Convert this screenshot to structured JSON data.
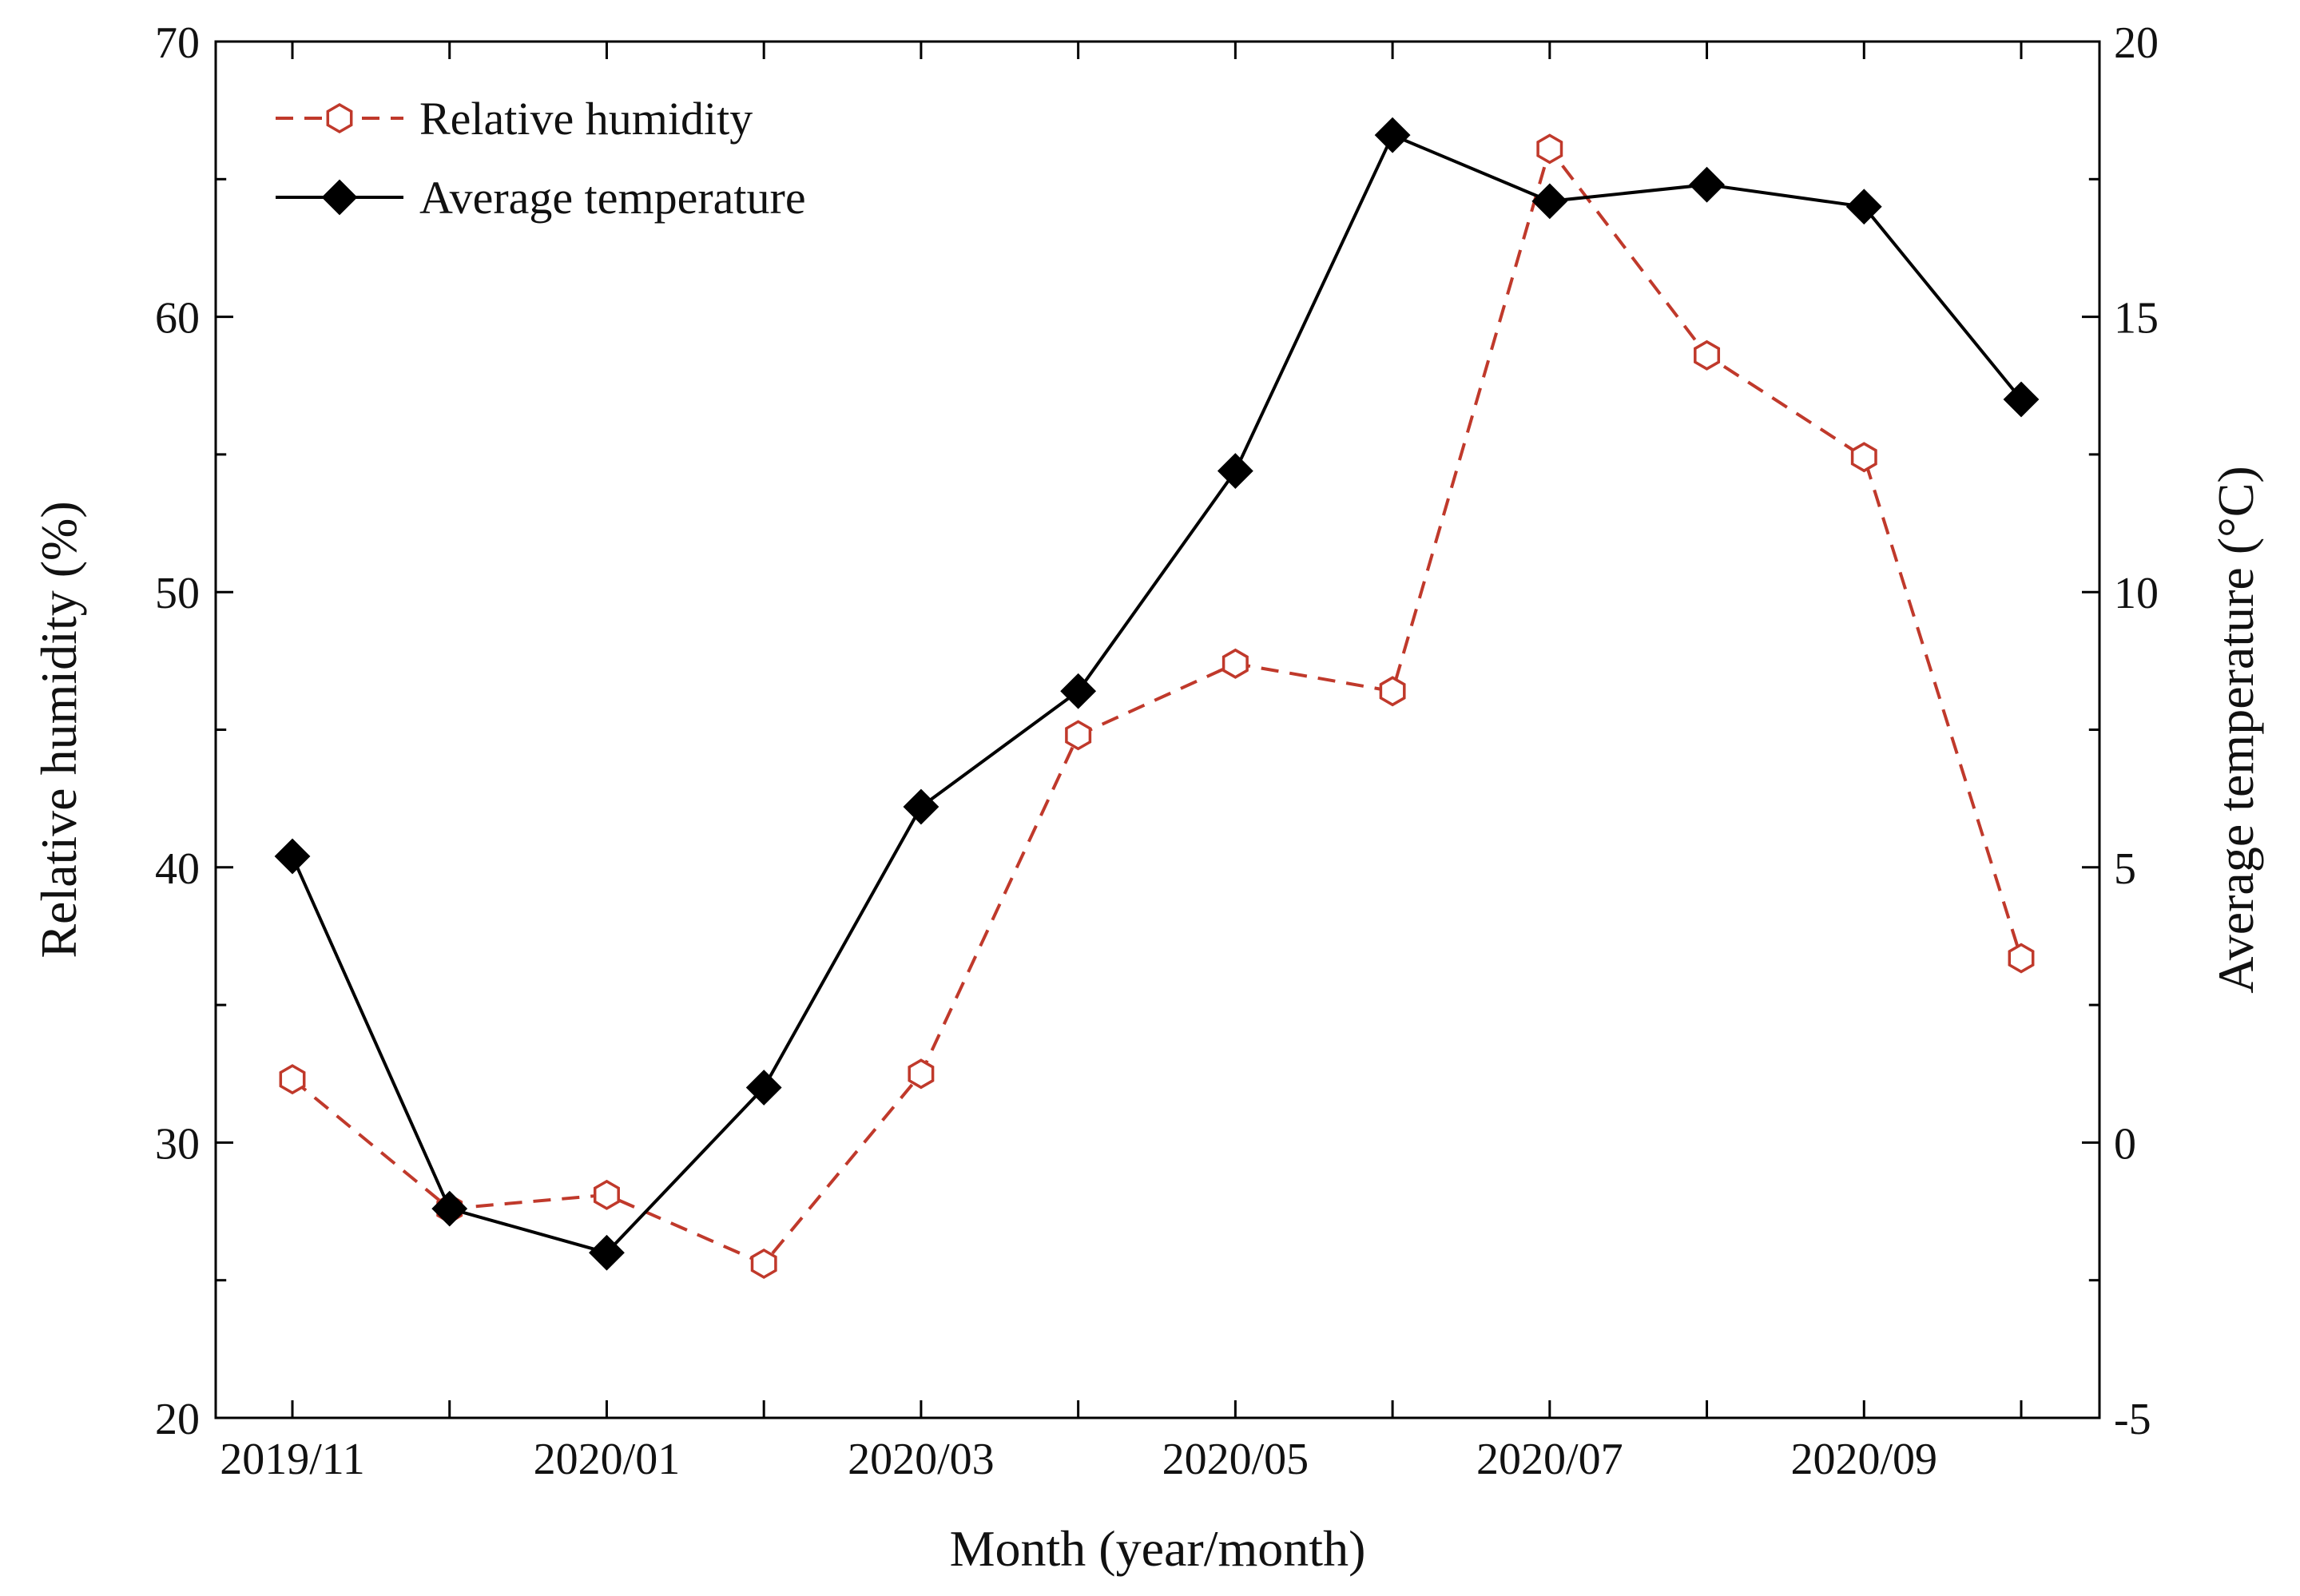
{
  "chart_data": {
    "type": "line",
    "title": "",
    "xlabel": "Month (year/month)",
    "ylabel": "Relative humidity (%)",
    "y2label": "Average temperature (°C)",
    "ylim": [
      20,
      70
    ],
    "y2lim": [
      -5,
      20
    ],
    "categories": [
      "2019/11",
      "2019/12",
      "2020/01",
      "2020/02",
      "2020/03",
      "2020/04",
      "2020/05",
      "2020/06",
      "2020/07",
      "2020/08",
      "2020/09",
      "2020/10"
    ],
    "x_tick_labels": [
      "2019/11",
      "",
      "2020/01",
      "",
      "2020/03",
      "",
      "2020/05",
      "",
      "2020/07",
      "",
      "2020/09",
      ""
    ],
    "y_ticks": [
      20,
      30,
      40,
      50,
      60,
      70
    ],
    "y2_ticks": [
      -5,
      0,
      5,
      10,
      15,
      20
    ],
    "legend_position": "top-left",
    "series": [
      {
        "name": "Relative humidity",
        "axis": "left",
        "color": "#c0392b",
        "line_style": "dashed",
        "marker": "open-hexagon",
        "values": [
          32.3,
          27.6,
          28.1,
          25.6,
          32.5,
          44.8,
          47.4,
          46.4,
          66.1,
          58.6,
          54.9,
          36.7
        ]
      },
      {
        "name": "Average temperature",
        "axis": "right",
        "color": "#000000",
        "line_style": "solid",
        "marker": "filled-diamond",
        "values": [
          5.2,
          -1.2,
          -2.0,
          1.0,
          6.1,
          8.2,
          12.2,
          18.3,
          17.1,
          17.4,
          17.0,
          13.5
        ]
      }
    ]
  }
}
